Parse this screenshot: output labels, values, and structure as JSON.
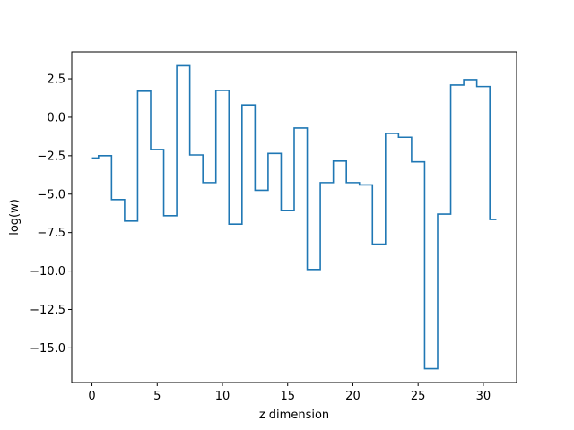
{
  "chart_data": {
    "type": "line",
    "drawstyle": "steps-mid",
    "title": "",
    "xlabel": "z dimension",
    "ylabel": "log(w)",
    "xlim": [
      -1.55,
      32.55
    ],
    "ylim": [
      -17.25,
      4.25
    ],
    "xticks": [
      0,
      5,
      10,
      15,
      20,
      25,
      30
    ],
    "yticks": [
      2.5,
      0.0,
      -2.5,
      -5.0,
      -7.5,
      -10.0,
      -12.5,
      -15.0
    ],
    "x_tick_labels": [
      "0",
      "5",
      "10",
      "15",
      "20",
      "25",
      "30"
    ],
    "y_tick_labels": [
      "2.5",
      "0.0",
      "−2.5",
      "−5.0",
      "−7.5",
      "−10.0",
      "−12.5",
      "−15.0"
    ],
    "grid": false,
    "legend": "none",
    "series": [
      {
        "color": "#1f77b4",
        "x": [
          0,
          1,
          2,
          3,
          4,
          5,
          6,
          7,
          8,
          9,
          10,
          11,
          12,
          13,
          14,
          15,
          16,
          17,
          18,
          19,
          20,
          21,
          22,
          23,
          24,
          25,
          26,
          27,
          28,
          29,
          30,
          31
        ],
        "values": [
          -2.65,
          -2.5,
          -5.35,
          -6.75,
          1.7,
          -2.1,
          -6.4,
          3.35,
          -2.45,
          -4.25,
          1.75,
          -6.95,
          0.8,
          -4.75,
          -2.35,
          -6.05,
          -0.7,
          -9.9,
          -4.25,
          -2.85,
          -4.25,
          -4.4,
          -8.25,
          -1.05,
          -1.3,
          -2.9,
          -16.35,
          -6.3,
          2.1,
          2.45,
          2.0,
          -6.65
        ]
      }
    ]
  }
}
